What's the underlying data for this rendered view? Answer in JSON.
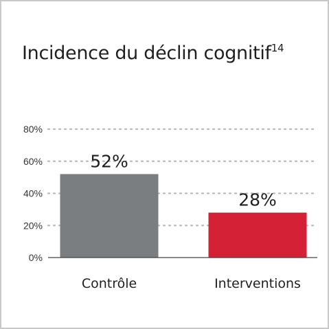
{
  "chart_data": {
    "type": "bar",
    "title": "Incidence du déclin cognitif",
    "title_superscript": "14",
    "categories": [
      "Contrôle",
      "Interventions"
    ],
    "values": [
      52,
      28
    ],
    "value_labels": [
      "52%",
      "28%"
    ],
    "colors": [
      "#7b7e80",
      "#d42135"
    ],
    "ylim": [
      0,
      80
    ],
    "yticks": [
      0,
      20,
      40,
      60,
      80
    ],
    "ytick_labels": [
      "0%",
      "20%",
      "40%",
      "60%",
      "80%"
    ],
    "grid": true
  }
}
